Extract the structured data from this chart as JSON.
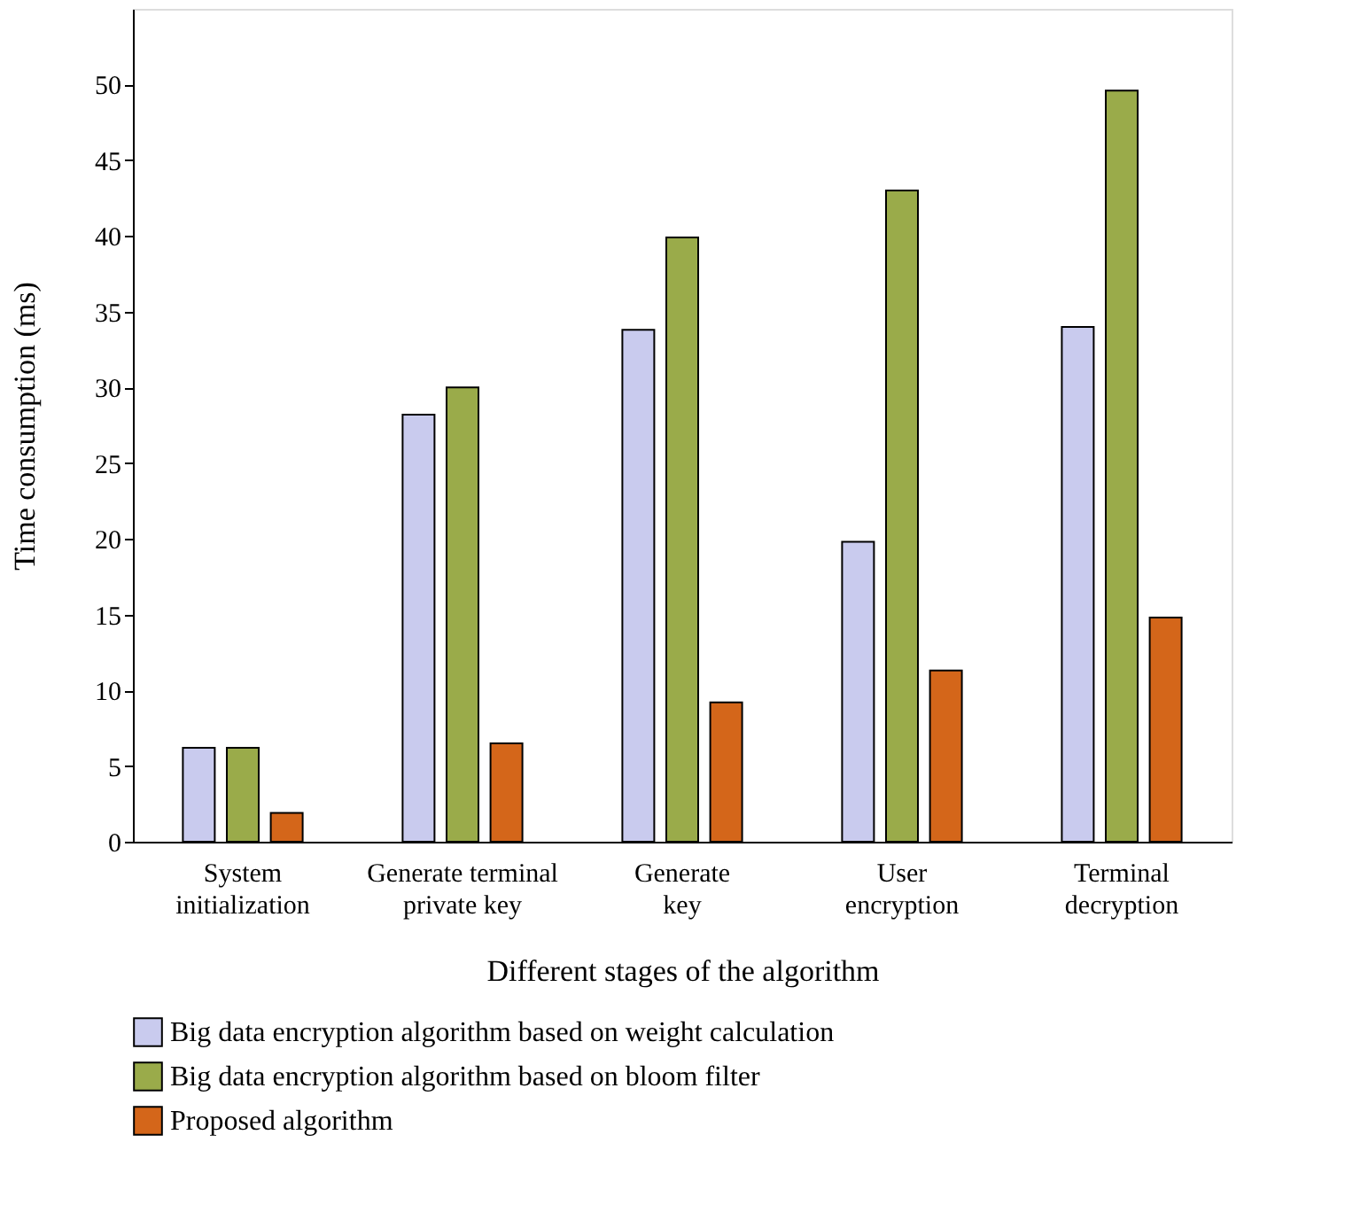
{
  "chart_data": {
    "type": "bar",
    "xlabel": "Different stages of the algorithm",
    "ylabel": "Time consumption (ms)",
    "categories": [
      "System\ninitialization",
      "Generate terminal\nprivate key",
      "Generate\nkey",
      "User\nencryption",
      "Terminal\ndecryption"
    ],
    "series": [
      {
        "name": "Big data encryption algorithm based on weight calculation",
        "color": "#c9cbee",
        "values": [
          6.2,
          28.2,
          33.8,
          19.8,
          34.0
        ]
      },
      {
        "name": "Big data encryption algorithm based on bloom filter",
        "color": "#9aab4a",
        "values": [
          6.2,
          30.0,
          39.9,
          43.0,
          49.6
        ]
      },
      {
        "name": "Proposed algorithm",
        "color": "#d4661a",
        "values": [
          1.9,
          6.5,
          9.2,
          11.3,
          14.8
        ]
      }
    ],
    "ylim": [
      0,
      55
    ],
    "yticks": [
      0,
      5,
      10,
      15,
      20,
      25,
      30,
      35,
      40,
      45,
      50
    ],
    "grid": false,
    "legend": "bottom"
  }
}
